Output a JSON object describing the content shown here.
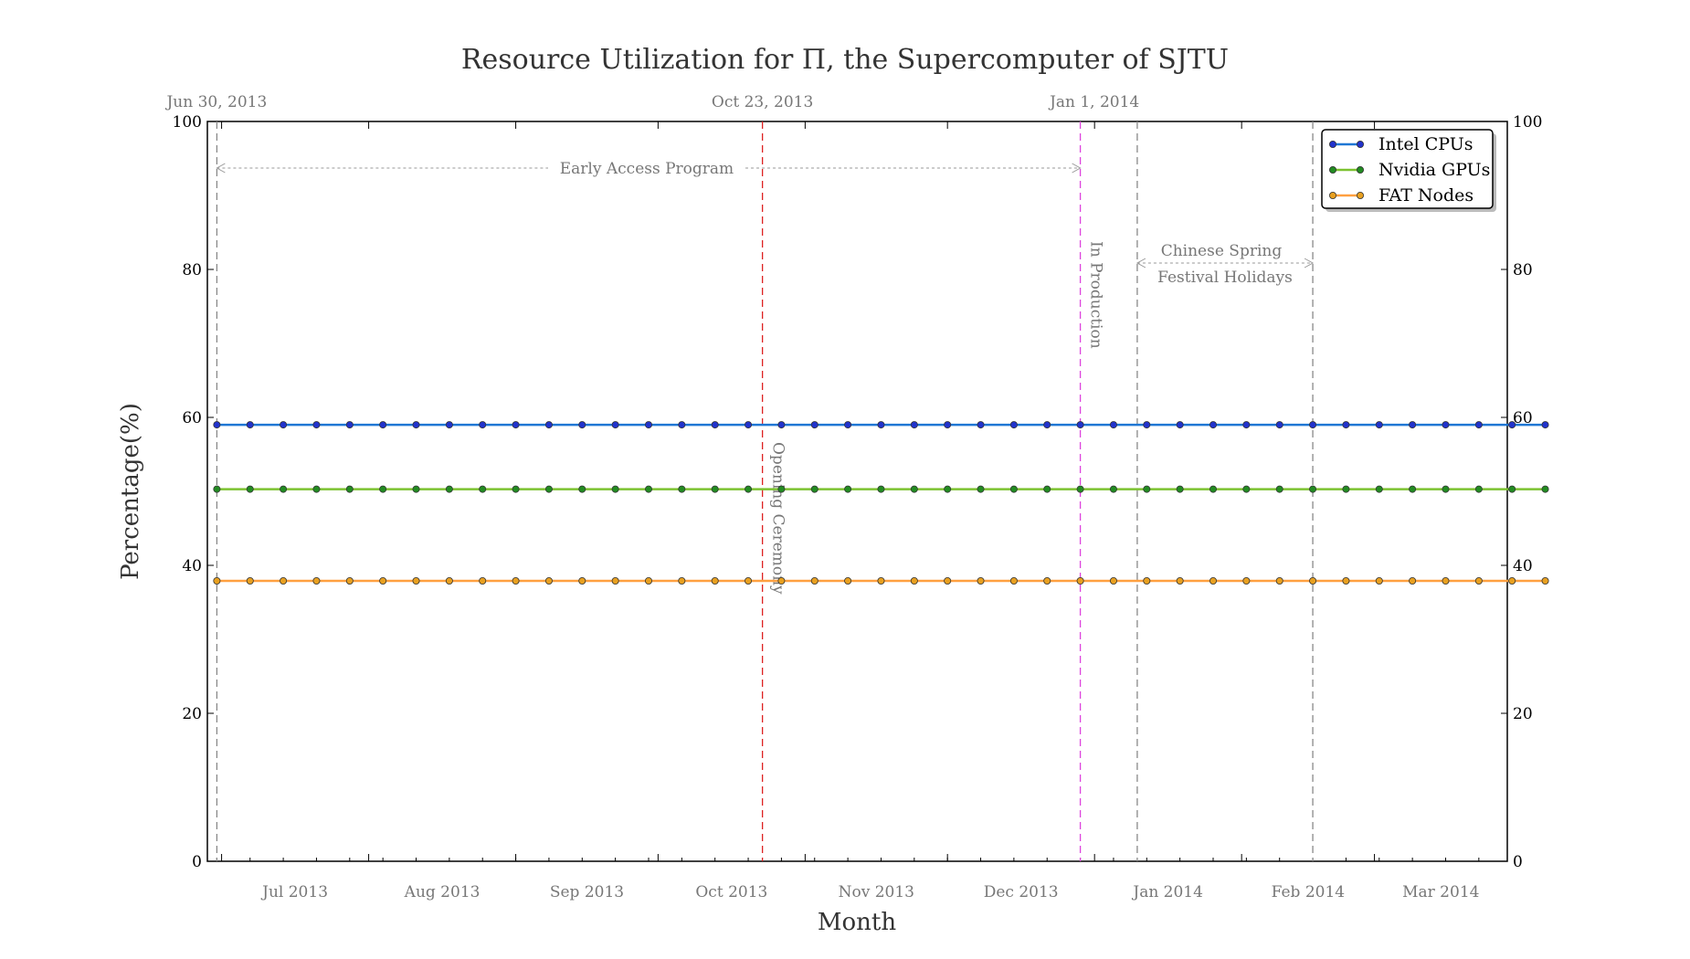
{
  "chart_data": {
    "type": "line",
    "title": "Resource Utilization for Π, the Supercomputer of SJTU",
    "xlabel": "Month",
    "ylabel": "Percentage(%)",
    "ylim": [
      0,
      100
    ],
    "xlim": [
      "2013-06-28",
      "2014-03-29"
    ],
    "y_ticks": [
      "0",
      "20",
      "40",
      "60",
      "80",
      "100"
    ],
    "month_ticks": [
      {
        "date": "2013-07-01",
        "label": "Jul 2013"
      },
      {
        "date": "2013-08-01",
        "label": "Aug 2013"
      },
      {
        "date": "2013-09-01",
        "label": "Sep 2013"
      },
      {
        "date": "2013-10-01",
        "label": "Oct 2013"
      },
      {
        "date": "2013-11-01",
        "label": "Nov 2013"
      },
      {
        "date": "2013-12-01",
        "label": "Dec 2013"
      },
      {
        "date": "2014-01-01",
        "label": "Jan 2014"
      },
      {
        "date": "2014-02-01",
        "label": "Feb 2014"
      },
      {
        "date": "2014-03-01",
        "label": "Mar 2014"
      }
    ],
    "top_ticks": [
      {
        "date": "2013-06-30",
        "label": "Jun 30, 2013"
      },
      {
        "date": "2013-10-23",
        "label": "Oct 23, 2013"
      },
      {
        "date": "2014-01-01",
        "label": "Jan 1, 2014"
      }
    ],
    "series": [
      {
        "name": "Intel CPUs",
        "line_color": "#1f77d4",
        "marker_color": "#2233cc",
        "values": [
          59,
          59,
          59,
          59,
          59,
          59,
          59,
          59,
          59,
          59,
          59,
          59,
          59,
          59,
          59,
          59,
          59,
          59,
          59,
          59,
          59,
          59,
          59,
          59,
          59,
          59,
          59,
          59,
          59,
          59,
          59,
          59,
          59,
          59,
          59,
          59,
          59,
          59,
          59,
          59,
          59
        ]
      },
      {
        "name": "Nvidia GPUs",
        "line_color": "#7cc230",
        "marker_color": "#228b22",
        "values": [
          50.3,
          50.3,
          50.3,
          50.3,
          50.3,
          50.3,
          50.3,
          50.3,
          50.3,
          50.3,
          50.3,
          50.3,
          50.3,
          50.3,
          50.3,
          50.3,
          50.3,
          50.3,
          50.3,
          50.3,
          50.3,
          50.3,
          50.3,
          50.3,
          50.3,
          50.3,
          50.3,
          50.3,
          50.3,
          50.3,
          50.3,
          50.3,
          50.3,
          50.3,
          50.3,
          50.3,
          50.3,
          50.3,
          50.3,
          50.3,
          50.3
        ]
      },
      {
        "name": "FAT Nodes",
        "line_color": "#ffa040",
        "marker_color": "#e8a020",
        "values": [
          37.9,
          37.9,
          37.9,
          37.9,
          37.9,
          37.9,
          37.9,
          37.9,
          37.9,
          37.9,
          37.9,
          37.9,
          37.9,
          37.9,
          37.9,
          37.9,
          37.9,
          37.9,
          37.9,
          37.9,
          37.9,
          37.9,
          37.9,
          37.9,
          37.9,
          37.9,
          37.9,
          37.9,
          37.9,
          37.9,
          37.9,
          37.9,
          37.9,
          37.9,
          37.9,
          37.9,
          37.9,
          37.9,
          37.9,
          37.9,
          37.9
        ]
      }
    ],
    "x_start": "2013-06-30",
    "x_step_days": 7,
    "vlines": [
      {
        "date": "2013-06-30",
        "color": "#888888"
      },
      {
        "date": "2013-10-23",
        "color": "#dd2222"
      },
      {
        "date": "2013-12-29",
        "color": "#dd44dd"
      },
      {
        "date": "2014-01-10",
        "color": "#888888"
      },
      {
        "date": "2014-02-16",
        "color": "#888888"
      }
    ],
    "annotations": {
      "early_access": "Early Access Program",
      "opening": "Opening Ceremony",
      "production": "In Production",
      "holiday_line1": "Chinese Spring",
      "holiday_line2": "Festival Holidays"
    },
    "legend_position": "top-right",
    "grid": false
  }
}
